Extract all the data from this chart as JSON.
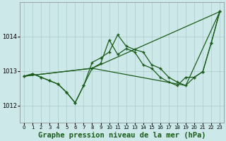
{
  "bg_color": "#cce8e8",
  "grid_color": "#aacccc",
  "line_color": "#1a5c1a",
  "xlabel": "Graphe pression niveau de la mer (hPa)",
  "xlabel_fontsize": 7.5,
  "ylim": [
    1011.5,
    1015.0
  ],
  "yticks": [
    1012,
    1013,
    1014
  ],
  "ytick_labels": [
    "1012",
    "1013",
    "1014"
  ],
  "xlim": [
    -0.5,
    23.5
  ],
  "xticks": [
    0,
    1,
    2,
    3,
    4,
    5,
    6,
    7,
    8,
    9,
    10,
    11,
    12,
    13,
    14,
    15,
    16,
    17,
    18,
    19,
    20,
    21,
    22,
    23
  ],
  "series1_x": [
    0,
    1,
    2,
    3,
    4,
    5,
    6,
    7,
    8,
    9,
    10,
    11,
    12,
    13,
    14,
    15,
    16,
    17,
    18,
    19,
    20,
    21,
    22,
    23
  ],
  "series1_y": [
    1012.85,
    1012.92,
    1012.82,
    1012.72,
    1012.62,
    1012.38,
    1012.08,
    1012.58,
    1013.25,
    1013.38,
    1013.55,
    1014.05,
    1013.72,
    1013.62,
    1013.55,
    1013.18,
    1013.08,
    1012.82,
    1012.68,
    1012.58,
    1012.82,
    1012.98,
    1013.82,
    1014.72
  ],
  "series2_x": [
    0,
    1,
    2,
    3,
    4,
    5,
    6,
    7,
    8,
    9,
    10,
    11,
    12,
    13,
    14,
    15,
    16,
    17,
    18,
    19,
    20,
    21,
    22,
    23
  ],
  "series2_y": [
    1012.85,
    1012.92,
    1012.82,
    1012.72,
    1012.62,
    1012.38,
    1012.08,
    1012.58,
    1013.08,
    1013.22,
    1013.9,
    1013.48,
    1013.65,
    1013.55,
    1013.18,
    1013.08,
    1012.82,
    1012.68,
    1012.58,
    1012.82,
    1012.82,
    1012.98,
    1013.82,
    1014.72
  ],
  "series3_x": [
    0,
    8,
    23
  ],
  "series3_y": [
    1012.85,
    1013.08,
    1014.72
  ],
  "series4_x": [
    0,
    8,
    19,
    23
  ],
  "series4_y": [
    1012.85,
    1013.08,
    1012.58,
    1014.72
  ]
}
